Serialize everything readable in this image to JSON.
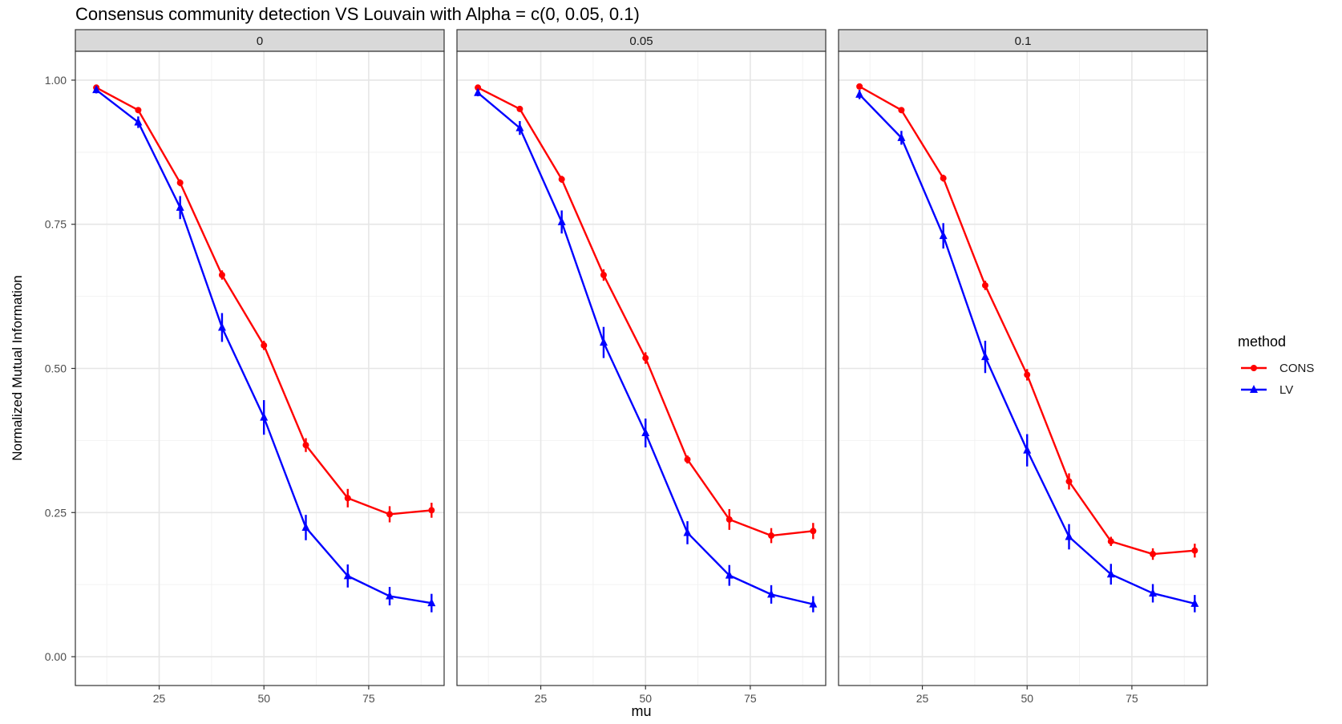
{
  "chart_data": {
    "type": "line",
    "title": "Consensus community detection VS Louvain with Alpha = c(0, 0.05, 0.1)",
    "xlabel": "mu",
    "ylabel": "Normalized Mutual Information",
    "xlim": [
      5,
      93
    ],
    "ylim": [
      -0.05,
      1.05
    ],
    "x_ticks": [
      25,
      50,
      75
    ],
    "x_tick_labels": [
      "25",
      "50",
      "75"
    ],
    "y_ticks": [
      0,
      0.25,
      0.5,
      0.75,
      1.0
    ],
    "y_tick_labels": [
      "0.00",
      "0.25",
      "0.50",
      "0.75",
      "1.00"
    ],
    "grid": true,
    "legend": {
      "title": "method",
      "position": "right",
      "entries": [
        {
          "name": "CONS",
          "color": "#ff0000",
          "marker": "circle"
        },
        {
          "name": "LV",
          "color": "#0000ff",
          "marker": "triangle"
        }
      ]
    },
    "x": [
      10,
      20,
      30,
      40,
      50,
      60,
      70,
      80,
      90
    ],
    "panels": [
      {
        "label": "0",
        "series": [
          {
            "name": "CONS",
            "values": [
              0.987,
              0.948,
              0.822,
              0.662,
              0.54,
              0.367,
              0.275,
              0.247,
              0.254
            ],
            "errors": [
              0.004,
              0.005,
              0.006,
              0.008,
              0.008,
              0.012,
              0.016,
              0.014,
              0.013
            ]
          },
          {
            "name": "LV",
            "values": [
              0.983,
              0.927,
              0.779,
              0.571,
              0.415,
              0.224,
              0.14,
              0.105,
              0.093
            ],
            "errors": [
              0.006,
              0.01,
              0.02,
              0.025,
              0.03,
              0.022,
              0.02,
              0.016,
              0.016
            ]
          }
        ]
      },
      {
        "label": "0.05",
        "series": [
          {
            "name": "CONS",
            "values": [
              0.987,
              0.95,
              0.828,
              0.662,
              0.518,
              0.342,
              0.238,
              0.21,
              0.218
            ],
            "errors": [
              0.004,
              0.005,
              0.006,
              0.01,
              0.01,
              0.007,
              0.018,
              0.013,
              0.014
            ]
          },
          {
            "name": "LV",
            "values": [
              0.978,
              0.917,
              0.754,
              0.545,
              0.388,
              0.215,
              0.141,
              0.108,
              0.091
            ],
            "errors": [
              0.006,
              0.012,
              0.02,
              0.027,
              0.025,
              0.02,
              0.018,
              0.016,
              0.014
            ]
          }
        ]
      },
      {
        "label": "0.1",
        "series": [
          {
            "name": "CONS",
            "values": [
              0.989,
              0.948,
              0.83,
              0.644,
              0.489,
              0.304,
              0.2,
              0.178,
              0.184
            ],
            "errors": [
              0.004,
              0.005,
              0.006,
              0.008,
              0.01,
              0.014,
              0.008,
              0.01,
              0.012
            ]
          },
          {
            "name": "LV",
            "values": [
              0.975,
              0.9,
              0.73,
              0.52,
              0.358,
              0.208,
              0.143,
              0.11,
              0.092
            ],
            "errors": [
              0.008,
              0.012,
              0.022,
              0.028,
              0.028,
              0.022,
              0.018,
              0.016,
              0.015
            ]
          }
        ]
      }
    ]
  }
}
